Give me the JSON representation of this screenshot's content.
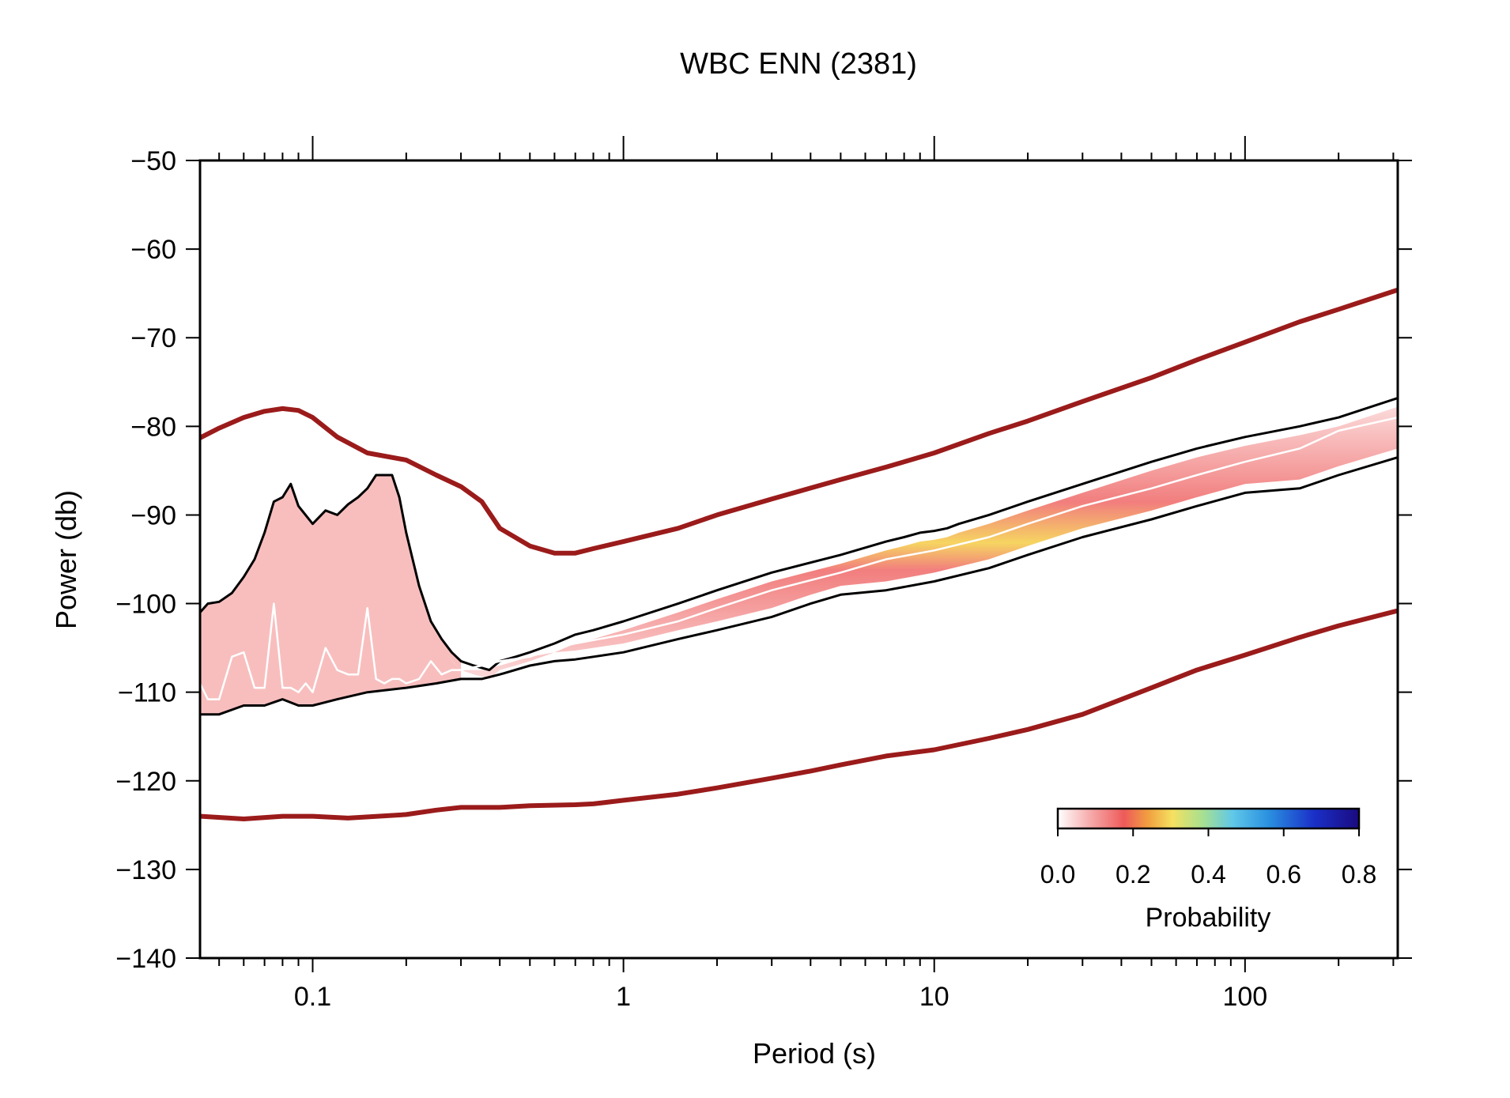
{
  "chart_data": {
    "type": "line",
    "title": "WBC ENN (2381)",
    "xlabel": "Period (s)",
    "ylabel": "Power (db)",
    "xscale": "log",
    "xlim": [
      0.0434,
      310
    ],
    "ylim": [
      -140,
      -50
    ],
    "grid": false,
    "x_ticks": [
      0.1,
      1,
      10,
      100
    ],
    "x_tick_labels": [
      "0.1",
      "1",
      "10",
      "100"
    ],
    "y_ticks": [
      -50,
      -60,
      -70,
      -80,
      -90,
      -100,
      -110,
      -120,
      -130,
      -140
    ],
    "y_tick_labels": [
      "−50",
      "−60",
      "−70",
      "−80",
      "−90",
      "−100",
      "−110",
      "−120",
      "−130",
      "−140"
    ],
    "colorbar": {
      "label": "Probability",
      "range": [
        0,
        0.8
      ],
      "ticks": [
        0.0,
        0.2,
        0.4,
        0.6,
        0.8
      ],
      "tick_labels": [
        "0.0",
        "0.2",
        "0.4",
        "0.6",
        "0.8"
      ],
      "placement": "bottom-right"
    },
    "series": [
      {
        "id": "new_high_noise_model",
        "color": "#9b1b1b",
        "x": [
          0.0434,
          0.05,
          0.06,
          0.07,
          0.08,
          0.09,
          0.1,
          0.12,
          0.15,
          0.2,
          0.25,
          0.3,
          0.35,
          0.4,
          0.5,
          0.6,
          0.7,
          0.8,
          1.0,
          1.5,
          2,
          3,
          5,
          7,
          10,
          15,
          20,
          30,
          50,
          70,
          100,
          150,
          200,
          310
        ],
        "y": [
          -81.3,
          -80.2,
          -79.0,
          -78.3,
          -78.0,
          -78.2,
          -79.0,
          -81.2,
          -83.0,
          -83.8,
          -85.5,
          -86.8,
          -88.5,
          -91.5,
          -93.5,
          -94.3,
          -94.3,
          -93.8,
          -93.0,
          -91.5,
          -90.0,
          -88.2,
          -86.0,
          -84.6,
          -83.0,
          -80.8,
          -79.4,
          -77.2,
          -74.5,
          -72.5,
          -70.5,
          -68.2,
          -66.8,
          -64.6
        ]
      },
      {
        "id": "new_low_noise_model",
        "color": "#9b1b1b",
        "x": [
          0.0434,
          0.06,
          0.08,
          0.1,
          0.13,
          0.2,
          0.25,
          0.3,
          0.4,
          0.5,
          0.7,
          0.8,
          1,
          1.5,
          2,
          3,
          4,
          5,
          7,
          10,
          15,
          20,
          30,
          50,
          70,
          100,
          150,
          200,
          310
        ],
        "y": [
          -124.0,
          -124.3,
          -124.0,
          -124.0,
          -124.2,
          -123.8,
          -123.3,
          -123.0,
          -123.0,
          -122.8,
          -122.7,
          -122.6,
          -122.2,
          -121.5,
          -120.8,
          -119.7,
          -118.9,
          -118.2,
          -117.2,
          -116.5,
          -115.2,
          -114.2,
          -112.5,
          -109.5,
          -107.5,
          -105.8,
          -103.8,
          -102.5,
          -100.8
        ]
      },
      {
        "id": "upper_percentile",
        "color": "#000000",
        "x": [
          0.0434,
          0.046,
          0.05,
          0.055,
          0.06,
          0.065,
          0.07,
          0.075,
          0.08,
          0.085,
          0.09,
          0.1,
          0.11,
          0.12,
          0.13,
          0.14,
          0.15,
          0.16,
          0.17,
          0.18,
          0.19,
          0.2,
          0.22,
          0.24,
          0.26,
          0.28,
          0.3,
          0.33,
          0.37,
          0.4,
          0.45,
          0.5,
          0.6,
          0.7,
          0.8,
          1,
          1.5,
          2,
          3,
          5,
          7,
          8,
          9,
          10,
          11,
          12,
          15,
          20,
          30,
          50,
          70,
          100,
          150,
          200,
          310
        ],
        "y": [
          -101,
          -100,
          -99.8,
          -98.8,
          -97.0,
          -95.0,
          -92.0,
          -88.5,
          -88.0,
          -86.5,
          -89.0,
          -91.0,
          -89.5,
          -90.0,
          -88.8,
          -88.0,
          -87.0,
          -85.5,
          -85.5,
          -85.5,
          -88.0,
          -92.0,
          -98.0,
          -102.0,
          -104.0,
          -105.5,
          -106.5,
          -107.0,
          -107.5,
          -106.5,
          -106.0,
          -105.5,
          -104.5,
          -103.5,
          -103.0,
          -102.0,
          -100.0,
          -98.5,
          -96.5,
          -94.5,
          -93.0,
          -92.5,
          -92.0,
          -91.8,
          -91.5,
          -91.0,
          -90.0,
          -88.5,
          -86.5,
          -84.0,
          -82.5,
          -81.2,
          -80.0,
          -79.0,
          -76.8
        ]
      },
      {
        "id": "lower_percentile",
        "color": "#000000",
        "x": [
          0.0434,
          0.05,
          0.06,
          0.07,
          0.08,
          0.09,
          0.1,
          0.12,
          0.15,
          0.2,
          0.25,
          0.3,
          0.35,
          0.4,
          0.5,
          0.6,
          0.7,
          1,
          1.5,
          2,
          3,
          4,
          5,
          7,
          10,
          15,
          20,
          30,
          50,
          70,
          100,
          150,
          200,
          310
        ],
        "y": [
          -112.5,
          -112.5,
          -111.5,
          -111.5,
          -110.8,
          -111.5,
          -111.5,
          -110.8,
          -110.0,
          -109.5,
          -109.0,
          -108.5,
          -108.5,
          -108.0,
          -107.0,
          -106.5,
          -106.3,
          -105.5,
          -104.0,
          -103.0,
          -101.5,
          -100.0,
          -99.0,
          -98.5,
          -97.5,
          -96.0,
          -94.5,
          -92.5,
          -90.5,
          -89.0,
          -87.5,
          -87.0,
          -85.5,
          -83.5
        ]
      },
      {
        "id": "mode",
        "color": "#ffffff",
        "x": [
          0.0434,
          0.046,
          0.05,
          0.055,
          0.06,
          0.065,
          0.07,
          0.075,
          0.08,
          0.085,
          0.09,
          0.095,
          0.1,
          0.11,
          0.12,
          0.13,
          0.14,
          0.15,
          0.16,
          0.17,
          0.18,
          0.19,
          0.2,
          0.22,
          0.24,
          0.26,
          0.28,
          0.3,
          0.35,
          0.4,
          0.5,
          0.6,
          0.7,
          1,
          1.5,
          2,
          3,
          5,
          7,
          10,
          15,
          20,
          30,
          50,
          70,
          100,
          150,
          200,
          310
        ],
        "y": [
          -109,
          -110.8,
          -110.8,
          -106.0,
          -105.5,
          -109.5,
          -109.5,
          -100.0,
          -109.5,
          -109.5,
          -110.0,
          -109.0,
          -110.0,
          -105.0,
          -107.5,
          -108.0,
          -108.0,
          -100.5,
          -108.5,
          -109.0,
          -108.5,
          -108.5,
          -109.0,
          -108.5,
          -106.5,
          -108.0,
          -107.5,
          -107.5,
          -107.0,
          -106.5,
          -106.0,
          -105.0,
          -104.5,
          -103.5,
          -102.0,
          -100.5,
          -98.5,
          -96.5,
          -95.0,
          -94.0,
          -92.5,
          -91.0,
          -89.0,
          -87.0,
          -85.5,
          -84.0,
          -82.5,
          -80.5,
          -79.0
        ]
      }
    ]
  }
}
